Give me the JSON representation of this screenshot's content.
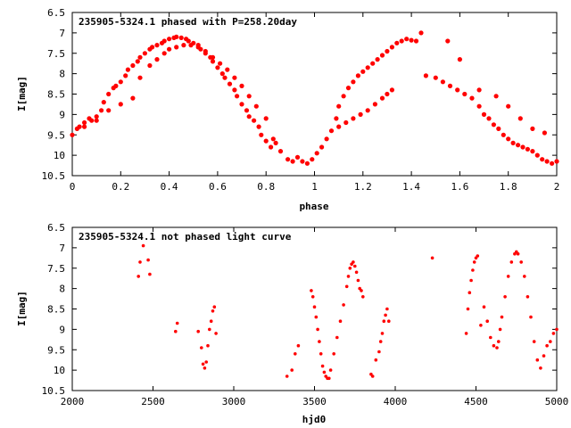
{
  "chart_data": [
    {
      "type": "scatter",
      "title": "235905-5324.1 phased with P=258.20day",
      "xlabel": "phase",
      "ylabel": "I[mag]",
      "xlim": [
        0,
        2
      ],
      "ylim": [
        10.5,
        6.5
      ],
      "y_inverted": true,
      "grid": false,
      "xticks": [
        "0",
        "0.2",
        "0.4",
        "0.6",
        "0.8",
        "1",
        "1.2",
        "1.4",
        "1.6",
        "1.8",
        "2"
      ],
      "yticks": [
        "6.5",
        "7",
        "7.5",
        "8",
        "8.5",
        "9",
        "9.5",
        "10",
        "10.5"
      ],
      "marker_color": "#ff0000",
      "x": [
        0.0,
        0.02,
        0.03,
        0.05,
        0.07,
        0.08,
        0.1,
        0.12,
        0.13,
        0.15,
        0.17,
        0.18,
        0.2,
        0.22,
        0.23,
        0.25,
        0.27,
        0.28,
        0.3,
        0.32,
        0.33,
        0.35,
        0.37,
        0.38,
        0.4,
        0.42,
        0.43,
        0.45,
        0.47,
        0.48,
        0.5,
        0.52,
        0.53,
        0.55,
        0.57,
        0.58,
        0.6,
        0.62,
        0.63,
        0.65,
        0.67,
        0.68,
        0.7,
        0.72,
        0.73,
        0.75,
        0.77,
        0.78,
        0.8,
        0.82,
        0.05,
        0.1,
        0.15,
        0.2,
        0.25,
        0.28,
        0.32,
        0.35,
        0.38,
        0.4,
        0.43,
        0.46,
        0.49,
        0.52,
        0.55,
        0.58,
        0.61,
        0.64,
        0.67,
        0.7,
        0.73,
        0.76,
        0.8,
        0.84,
        0.83,
        0.86,
        0.89,
        0.91,
        0.93,
        0.95,
        0.97,
        0.99,
        1.01,
        1.03,
        1.05,
        1.07,
        1.09,
        1.1,
        1.12,
        1.14,
        1.16,
        1.18,
        1.2,
        1.22,
        1.24,
        1.26,
        1.28,
        1.3,
        1.32,
        1.34,
        1.36,
        1.38,
        1.4,
        1.42,
        1.44,
        1.1,
        1.13,
        1.16,
        1.19,
        1.22,
        1.25,
        1.28,
        1.3,
        1.32,
        1.46,
        1.5,
        1.53,
        1.56,
        1.59,
        1.62,
        1.65,
        1.68,
        1.7,
        1.72,
        1.74,
        1.76,
        1.78,
        1.8,
        1.82,
        1.84,
        1.86,
        1.88,
        1.9,
        1.92,
        1.94,
        1.96,
        1.98,
        2.0,
        1.55,
        1.6,
        1.68,
        1.75,
        1.8,
        1.85,
        1.9,
        1.95
      ],
      "y": [
        9.5,
        9.35,
        9.3,
        9.2,
        9.1,
        9.15,
        9.05,
        8.9,
        8.7,
        8.5,
        8.35,
        8.3,
        8.2,
        8.05,
        7.9,
        7.8,
        7.7,
        7.6,
        7.5,
        7.4,
        7.35,
        7.3,
        7.25,
        7.2,
        7.15,
        7.12,
        7.1,
        7.12,
        7.15,
        7.2,
        7.25,
        7.3,
        7.4,
        7.5,
        7.6,
        7.7,
        7.85,
        8.0,
        8.1,
        8.25,
        8.4,
        8.55,
        8.75,
        8.9,
        9.05,
        9.15,
        9.3,
        9.5,
        9.65,
        9.8,
        9.3,
        9.15,
        8.9,
        8.75,
        8.6,
        8.1,
        7.8,
        7.65,
        7.5,
        7.4,
        7.35,
        7.3,
        7.3,
        7.35,
        7.45,
        7.6,
        7.75,
        7.9,
        8.1,
        8.3,
        8.55,
        8.8,
        9.1,
        9.7,
        9.6,
        9.9,
        10.1,
        10.15,
        10.05,
        10.15,
        10.2,
        10.1,
        9.95,
        9.8,
        9.6,
        9.4,
        9.1,
        8.8,
        8.55,
        8.35,
        8.2,
        8.05,
        7.95,
        7.85,
        7.75,
        7.65,
        7.55,
        7.45,
        7.35,
        7.25,
        7.2,
        7.15,
        7.18,
        7.2,
        7.0,
        9.3,
        9.2,
        9.1,
        9.0,
        8.9,
        8.75,
        8.6,
        8.5,
        8.4,
        8.05,
        8.1,
        8.2,
        8.3,
        8.4,
        8.5,
        8.6,
        8.8,
        9.0,
        9.1,
        9.25,
        9.35,
        9.5,
        9.6,
        9.7,
        9.75,
        9.8,
        9.85,
        9.9,
        10.0,
        10.1,
        10.15,
        10.2,
        10.15,
        7.2,
        7.65,
        8.4,
        8.55,
        8.8,
        9.1,
        9.35,
        9.45
      ]
    },
    {
      "type": "scatter",
      "title": "235905-5324.1 not phased light curve",
      "xlabel": "hjd0",
      "ylabel": "I[mag]",
      "xlim": [
        2000,
        5000
      ],
      "ylim": [
        10.5,
        6.5
      ],
      "y_inverted": true,
      "grid": false,
      "xticks": [
        "2000",
        "2500",
        "3000",
        "3500",
        "4000",
        "4500",
        "5000"
      ],
      "yticks": [
        "6.5",
        "7",
        "7.5",
        "8",
        "8.5",
        "9",
        "9.5",
        "10",
        "10.5"
      ],
      "marker_color": "#ff0000",
      "x": [
        2410,
        2420,
        2440,
        2470,
        2480,
        2640,
        2650,
        2780,
        2800,
        2810,
        2820,
        2830,
        2840,
        2850,
        2860,
        2870,
        2880,
        2890,
        3330,
        3360,
        3380,
        3400,
        3480,
        3490,
        3500,
        3510,
        3520,
        3530,
        3540,
        3550,
        3560,
        3570,
        3580,
        3590,
        3600,
        3620,
        3640,
        3660,
        3680,
        3700,
        3710,
        3720,
        3730,
        3740,
        3750,
        3760,
        3770,
        3780,
        3790,
        3800,
        3850,
        3860,
        3880,
        3900,
        3910,
        3920,
        3930,
        3940,
        3950,
        3960,
        4230,
        4440,
        4450,
        4460,
        4470,
        4480,
        4490,
        4500,
        4510,
        4530,
        4550,
        4570,
        4590,
        4610,
        4630,
        4640,
        4650,
        4660,
        4680,
        4700,
        4720,
        4740,
        4750,
        4760,
        4780,
        4800,
        4820,
        4840,
        4860,
        4880,
        4900,
        4920,
        4940,
        4960,
        4980,
        5000
      ],
      "y": [
        7.7,
        7.35,
        6.95,
        7.3,
        7.65,
        9.05,
        8.85,
        9.05,
        9.45,
        9.85,
        9.95,
        9.8,
        9.4,
        9.0,
        8.8,
        8.55,
        8.45,
        9.1,
        10.15,
        10.0,
        9.6,
        9.4,
        8.05,
        8.2,
        8.45,
        8.7,
        9.0,
        9.3,
        9.6,
        9.9,
        10.05,
        10.15,
        10.2,
        10.2,
        10.0,
        9.6,
        9.2,
        8.8,
        8.4,
        7.95,
        7.7,
        7.5,
        7.4,
        7.35,
        7.45,
        7.6,
        7.8,
        8.0,
        8.05,
        8.2,
        10.1,
        10.15,
        9.75,
        9.55,
        9.3,
        9.1,
        8.8,
        8.65,
        8.5,
        8.8,
        7.25,
        9.1,
        8.5,
        8.1,
        7.8,
        7.55,
        7.35,
        7.25,
        7.2,
        8.9,
        8.45,
        8.8,
        9.2,
        9.4,
        9.45,
        9.3,
        9.0,
        8.7,
        8.2,
        7.7,
        7.35,
        7.15,
        7.1,
        7.15,
        7.35,
        7.7,
        8.2,
        8.7,
        9.3,
        9.75,
        9.95,
        9.65,
        9.4,
        9.3,
        9.1,
        9.0
      ]
    }
  ]
}
